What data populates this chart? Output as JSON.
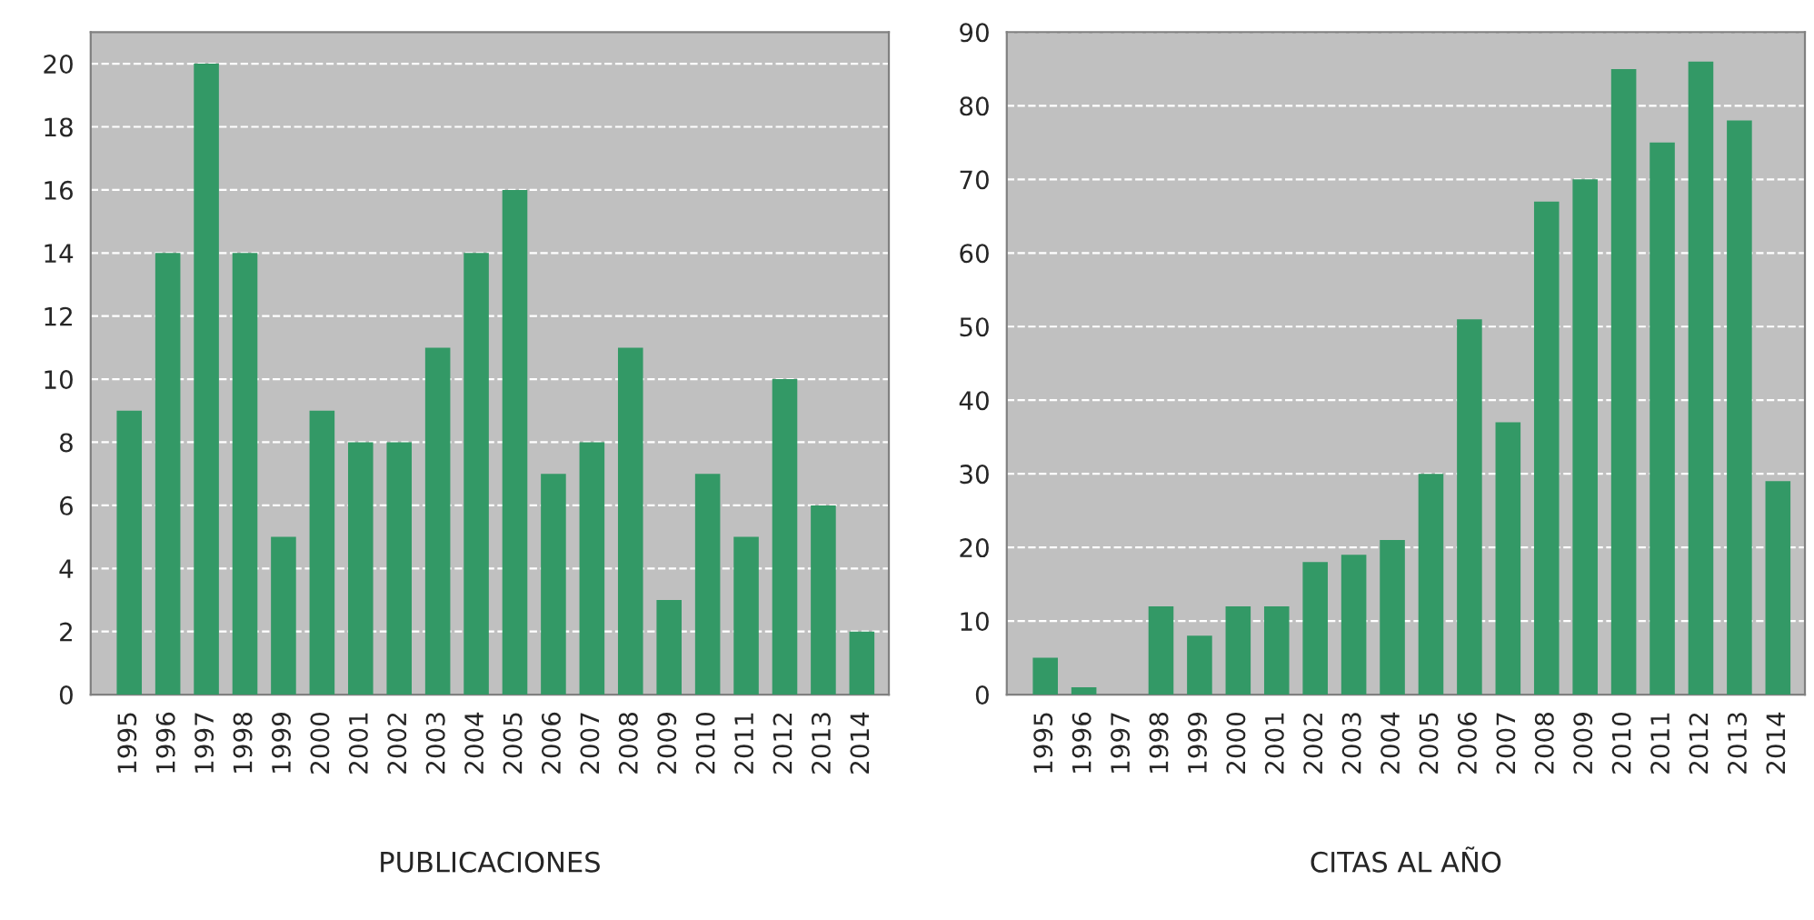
{
  "chart_data": [
    {
      "type": "bar",
      "xlabel": "PUBLICACIONES",
      "categories": [
        "1995",
        "1996",
        "1997",
        "1998",
        "1999",
        "2000",
        "2001",
        "2002",
        "2003",
        "2004",
        "2005",
        "2006",
        "2007",
        "2008",
        "2009",
        "2010",
        "2011",
        "2012",
        "2013",
        "2014"
      ],
      "series": [
        {
          "color": "#339966",
          "values": [
            9,
            14,
            20,
            14,
            5,
            9,
            8,
            8,
            11,
            14,
            16,
            7,
            8,
            11,
            3,
            7,
            5,
            10,
            6,
            2
          ]
        }
      ],
      "ylim": [
        0,
        21
      ],
      "yticks": [
        0,
        2,
        4,
        6,
        8,
        10,
        12,
        14,
        16,
        18,
        20
      ],
      "grid": "y",
      "legend": false
    },
    {
      "type": "bar",
      "xlabel": "CITAS AL AÑO",
      "categories": [
        "1995",
        "1996",
        "1997",
        "1998",
        "1999",
        "2000",
        "2001",
        "2002",
        "2003",
        "2004",
        "2005",
        "2006",
        "2007",
        "2008",
        "2009",
        "2010",
        "2011",
        "2012",
        "2013",
        "2014"
      ],
      "series": [
        {
          "color": "#339966",
          "values": [
            5,
            1,
            0,
            12,
            8,
            12,
            12,
            18,
            19,
            21,
            30,
            51,
            37,
            67,
            70,
            85,
            75,
            86,
            78,
            29
          ]
        }
      ],
      "ylim": [
        0,
        90
      ],
      "yticks": [
        0,
        10,
        20,
        30,
        40,
        50,
        60,
        70,
        80,
        90
      ],
      "grid": "y",
      "legend": false
    }
  ]
}
